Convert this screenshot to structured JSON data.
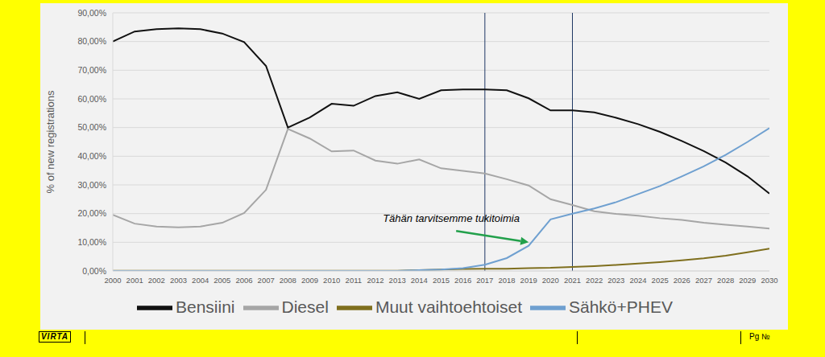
{
  "chart_data": {
    "type": "line",
    "y_label": "% of new registrations",
    "x": [
      2000,
      2001,
      2002,
      2003,
      2004,
      2005,
      2006,
      2007,
      2008,
      2009,
      2010,
      2011,
      2012,
      2013,
      2014,
      2015,
      2016,
      2017,
      2018,
      2019,
      2020,
      2021,
      2022,
      2023,
      2024,
      2025,
      2026,
      2027,
      2028,
      2029,
      2030
    ],
    "series": [
      {
        "name": "Diesel",
        "color": "#a6a6a6",
        "values": [
          19.6,
          16.5,
          15.5,
          15.2,
          15.5,
          16.8,
          20.2,
          28.3,
          49.5,
          46.2,
          41.7,
          42,
          38.5,
          37.4,
          38.9,
          35.8,
          34.9,
          34,
          32,
          29.8,
          25,
          23,
          20.8,
          19.9,
          19.3,
          18.4,
          17.8,
          16.8,
          16.1,
          15.5,
          14.8
        ]
      },
      {
        "name": "Bensiini",
        "color": "#111111",
        "values": [
          80,
          83.5,
          84.3,
          84.6,
          84.3,
          82.8,
          79.8,
          71.5,
          50,
          53.5,
          58.3,
          57.6,
          61,
          62.3,
          60,
          63,
          63.3,
          63.3,
          63,
          60.2,
          56,
          56,
          55.3,
          53.4,
          51.2,
          48.5,
          45.3,
          41.8,
          37.8,
          33,
          27
        ]
      },
      {
        "name": "Muut vaihtoehtoiset",
        "color": "#7f6f1e",
        "values": [
          0.1,
          0.1,
          0.1,
          0.1,
          0.1,
          0.1,
          0.1,
          0.1,
          0.1,
          0.1,
          0.1,
          0.1,
          0.1,
          0.1,
          0.3,
          0.5,
          0.7,
          0.8,
          0.8,
          1,
          1.1,
          1.4,
          1.7,
          2.1,
          2.6,
          3.1,
          3.7,
          4.4,
          5.3,
          6.5,
          7.8
        ]
      },
      {
        "name": "Sähkö+PHEV",
        "color": "#6fa0d0",
        "values": [
          0,
          0,
          0,
          0,
          0,
          0,
          0,
          0,
          0,
          0,
          0,
          0,
          0,
          0,
          0.3,
          0.5,
          1,
          2.2,
          4.5,
          8.8,
          18,
          20,
          21.8,
          24,
          26.8,
          29.6,
          33,
          36.5,
          40.5,
          45,
          49.8
        ]
      }
    ],
    "xlim": [
      2000,
      2030
    ],
    "xticks": [
      2000,
      2001,
      2002,
      2003,
      2004,
      2005,
      2006,
      2007,
      2008,
      2009,
      2010,
      2011,
      2012,
      2013,
      2014,
      2015,
      2016,
      2017,
      2018,
      2019,
      2020,
      2021,
      2022,
      2023,
      2024,
      2025,
      2026,
      2027,
      2028,
      2029,
      2030
    ],
    "ylim": [
      0,
      90
    ],
    "yticks": [
      {
        "value": 0,
        "label": "0,00%"
      },
      {
        "value": 10,
        "label": "10,00%"
      },
      {
        "value": 20,
        "label": "20,00%"
      },
      {
        "value": 30,
        "label": "30,00%"
      },
      {
        "value": 40,
        "label": "40,00%"
      },
      {
        "value": 50,
        "label": "50,00%"
      },
      {
        "value": 60,
        "label": "60,00%"
      },
      {
        "value": 70,
        "label": "70,00%"
      },
      {
        "value": 80,
        "label": "80,00%"
      },
      {
        "value": 90,
        "label": "90,00%"
      }
    ],
    "vlines": [
      2017,
      2021
    ],
    "annotations": [
      {
        "text": "Tähän tarvitsemme tukitoimia",
        "x": 2019,
        "y": 10,
        "color": "#22a04b"
      }
    ],
    "grid": true,
    "legend": "bottom"
  },
  "footer": {
    "logo": "VIRTA",
    "page": "Pg №"
  }
}
